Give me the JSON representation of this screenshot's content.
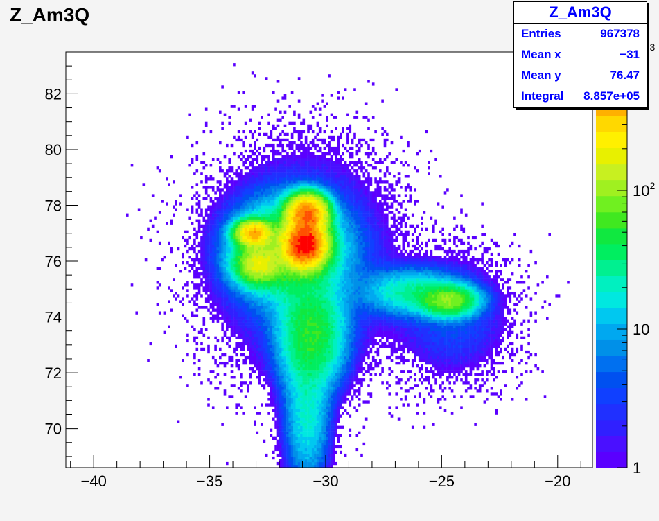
{
  "title": "Z_Am3Q",
  "stats": {
    "title": "Z_Am3Q",
    "rows": [
      {
        "label": "Entries",
        "value": "967378"
      },
      {
        "label": "Mean x",
        "value": "−31"
      },
      {
        "label": "Mean y",
        "value": "76.47"
      },
      {
        "label": "Integral",
        "value": "8.857e+05"
      }
    ]
  },
  "chart_data": {
    "type": "heatmap",
    "title": "Z_Am3Q",
    "xlabel": "",
    "ylabel": "",
    "xlim": [
      -41.2,
      -18.5
    ],
    "ylim": [
      68.6,
      83.5
    ],
    "x_ticks": [
      -40,
      -35,
      -30,
      -25,
      -20
    ],
    "x_tick_labels": [
      "−40",
      "−35",
      "−30",
      "−25",
      "−20"
    ],
    "y_ticks": [
      70,
      72,
      74,
      76,
      78,
      80,
      82
    ],
    "y_tick_labels": [
      "70",
      "72",
      "74",
      "76",
      "78",
      "80",
      "82"
    ],
    "z_scale": "log",
    "z_range": [
      1,
      1000
    ],
    "z_tick_labels": [
      "1",
      "10",
      "10^2",
      "10^3"
    ],
    "entries": 967378,
    "mean_x": -31,
    "mean_y": 76.47,
    "integral": 885700,
    "clusters": [
      {
        "x": -30.9,
        "y": 76.6,
        "peak": 950
      },
      {
        "x": -30.8,
        "y": 77.7,
        "peak": 600
      },
      {
        "x": -33.1,
        "y": 77.0,
        "peak": 380
      },
      {
        "x": -32.9,
        "y": 75.9,
        "peak": 140
      },
      {
        "x": -24.7,
        "y": 74.6,
        "peak": 90
      },
      {
        "x": -30.6,
        "y": 73.2,
        "peak": 50
      },
      {
        "x": -30.8,
        "y": 70.0,
        "peak": 15
      }
    ],
    "palette": [
      "#5a00ff",
      "#4a10ff",
      "#3020ff",
      "#2030ff",
      "#1040ff",
      "#0050f0",
      "#0070f0",
      "#0090e8",
      "#00a8f0",
      "#00c8f0",
      "#00e8e0",
      "#00f0c0",
      "#00f090",
      "#00ee60",
      "#10e840",
      "#40e820",
      "#70f020",
      "#a0f020",
      "#c8f020",
      "#e8f000",
      "#fff000",
      "#ffd800",
      "#ffb000",
      "#ff8800",
      "#ff5000",
      "#ff0000"
    ]
  }
}
